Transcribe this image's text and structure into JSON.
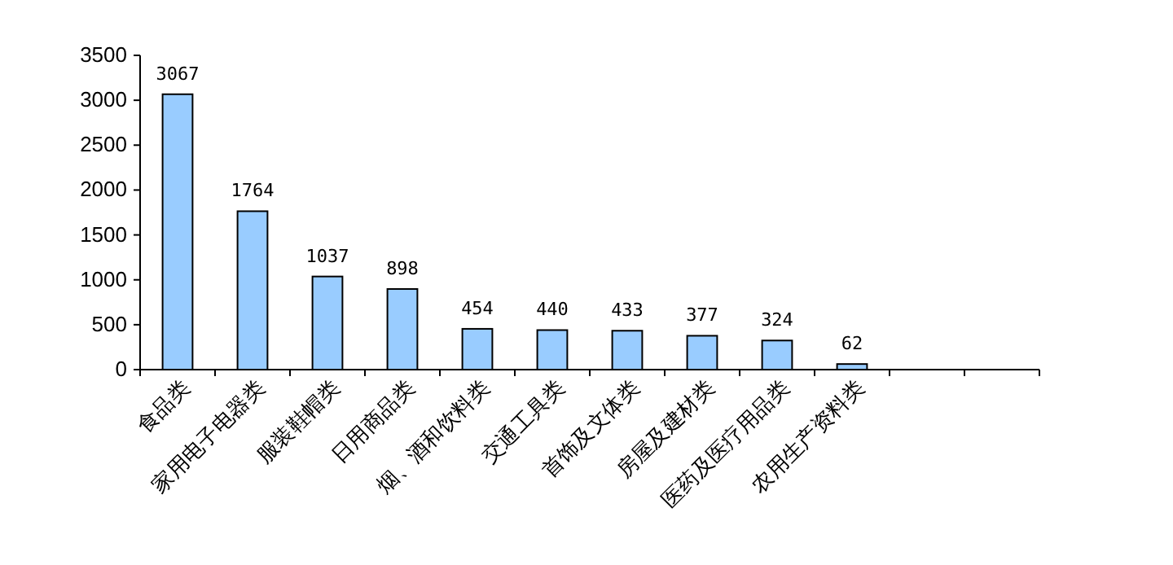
{
  "chart_data": {
    "type": "bar",
    "categories": [
      "食品类",
      "家用电子电器类",
      "服装鞋帽类",
      "日用商品类",
      "烟、酒和饮料类",
      "交通工具类",
      "首饰及文体类",
      "房屋及建材类",
      "医药及医疗用品类",
      "农用生产资料类",
      null,
      null
    ],
    "values": [
      3067,
      1764,
      1037,
      898,
      454,
      440,
      433,
      377,
      324,
      62,
      null,
      null
    ],
    "color": "#99ccff",
    "ylim": [
      0,
      3500
    ],
    "yticks": [
      0,
      500,
      1000,
      1500,
      2000,
      2500,
      3000,
      3500
    ],
    "data_labels": true,
    "grid": false
  }
}
